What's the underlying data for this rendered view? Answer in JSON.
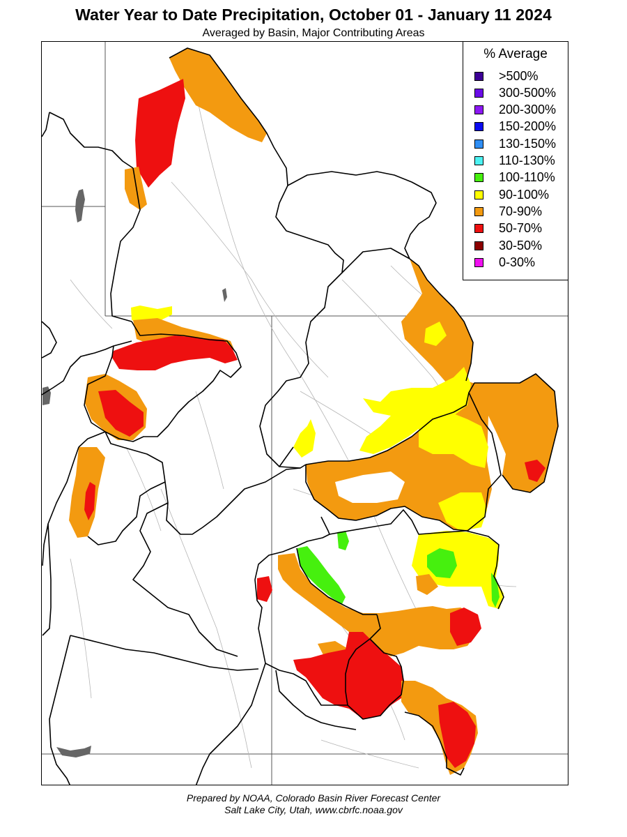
{
  "header": {
    "title": "Water Year to Date Precipitation, October 01  - January 11 2024",
    "subtitle": "Averaged by Basin, Major Contributing Areas"
  },
  "legend": {
    "title": "% Average",
    "items": [
      {
        "label": ">500%",
        "color": "#3d0096"
      },
      {
        "label": "300-500%",
        "color": "#6a0ce6"
      },
      {
        "label": "200-300%",
        "color": "#8c18f4"
      },
      {
        "label": "150-200%",
        "color": "#0a0af0"
      },
      {
        "label": "130-150%",
        "color": "#2f8ef4"
      },
      {
        "label": "110-130%",
        "color": "#4cf2f2"
      },
      {
        "label": "100-110%",
        "color": "#46f00e"
      },
      {
        "label": "90-100%",
        "color": "#ffff00"
      },
      {
        "label": "70-90%",
        "color": "#f39a10"
      },
      {
        "label": "50-70%",
        "color": "#ee1010"
      },
      {
        "label": "30-50%",
        "color": "#8c0000"
      },
      {
        "label": "0-30%",
        "color": "#f010f0"
      }
    ]
  },
  "footer": {
    "line1": "Prepared by NOAA, Colorado Basin River Forecast Center",
    "line2": "Salt Lake City, Utah, www.cbrfc.noaa.gov"
  }
}
